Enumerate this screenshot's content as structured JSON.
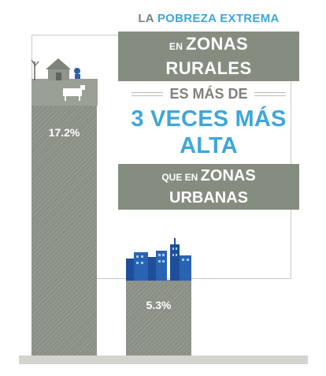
{
  "headline": {
    "line1_prefix": "LA ",
    "line1_highlight": "POBREZA EXTREMA",
    "rural_small": "EN ",
    "rural_big": "ZONAS RURALES",
    "es_mas": "ES MÁS DE",
    "emphasis": "3 VECES MÁS ALTA",
    "urban_small": "QUE EN ",
    "urban_big": "ZONAS URBANAS"
  },
  "chart_data": {
    "type": "bar",
    "categories": [
      "",
      ""
    ],
    "values": [
      17.2,
      5.3
    ],
    "data_labels": [
      "17.2%",
      "5.3%"
    ],
    "ylim": [
      0,
      17.2
    ],
    "grid": false,
    "colors": {
      "bar": "#8a9086",
      "accent": "#3ea7d9",
      "headline": "#7d8379"
    },
    "icons": [
      "rural-village-icon",
      "city-skyline-icon"
    ]
  }
}
